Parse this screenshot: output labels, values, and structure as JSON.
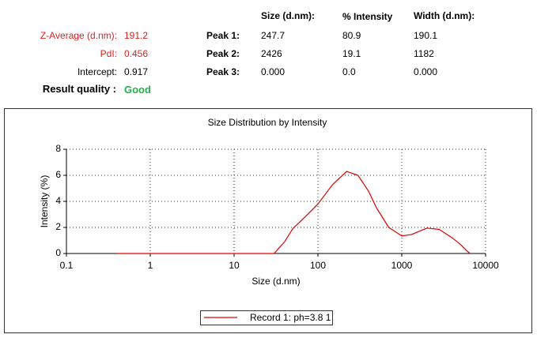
{
  "summary": {
    "rows": [
      {
        "label": "Z-Average (d.nm):",
        "value": "191.2"
      },
      {
        "label": "PdI:",
        "value": "0.456"
      },
      {
        "label": "Intercept:",
        "value": "0.917"
      }
    ],
    "quality_label": "Result quality :",
    "quality": "Good"
  },
  "peaks": {
    "headers": [
      "Size (d.nm):",
      "% Intensity",
      "Width (d.nm):"
    ],
    "rows": [
      {
        "label": "Peak 1:",
        "values": [
          "247.7",
          "80.9",
          "190.1"
        ]
      },
      {
        "label": "Peak 2:",
        "values": [
          "2426",
          "19.1",
          "1182"
        ]
      },
      {
        "label": "Peak 3:",
        "values": [
          "0.000",
          "0.0",
          "0.000"
        ]
      }
    ]
  },
  "chart_data": {
    "type": "line",
    "title": "Size Distribution by Intensity",
    "x_label": "Size (d.nm)",
    "y_label": "Intensity (%)",
    "x_log": true,
    "grid": true,
    "legend": "bottom",
    "x": [
      0.4,
      1,
      10,
      30,
      40,
      50,
      70,
      100,
      150,
      220,
      300,
      400,
      500,
      700,
      1000,
      1300,
      2000,
      2800,
      4000,
      5000,
      6000,
      6500
    ],
    "series": [
      {
        "name": "Record 1: ph=3.8 1",
        "color": "#e00000",
        "values": [
          0,
          0,
          0,
          0,
          0.9,
          1.9,
          2.8,
          3.8,
          5.3,
          6.3,
          6.0,
          4.8,
          3.5,
          2.0,
          1.35,
          1.45,
          1.95,
          1.85,
          1.2,
          0.7,
          0.2,
          0
        ]
      }
    ],
    "xlim": [
      0.1,
      10000
    ],
    "xticks": [
      0.1,
      1,
      10,
      100,
      1000,
      10000
    ],
    "ylim": [
      0,
      8
    ],
    "yticks": [
      0,
      2,
      4,
      6,
      8
    ]
  }
}
